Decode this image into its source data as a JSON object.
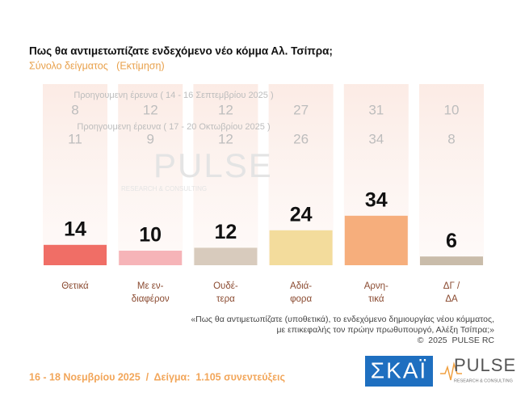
{
  "chart_data": {
    "type": "bar",
    "title": "Πως θα αντιμετωπίζατε ενδεχόμενο νέο κόμμα Αλ. Τσίπρα;",
    "subtitle": "Σύνολο δείγματος   (Εκτίμηση)",
    "categories": [
      [
        "Θετικά"
      ],
      [
        "Με εν-",
        "διαφέρον"
      ],
      [
        "Ουδέ-",
        "τερα"
      ],
      [
        "Αδιά-",
        "φορα"
      ],
      [
        "Αρνη-",
        "τικά"
      ],
      [
        "ΔΓ /",
        "ΔΑ"
      ]
    ],
    "values": [
      14,
      10,
      12,
      24,
      34,
      6
    ],
    "colors": [
      "#f06e66",
      "#f6b4b8",
      "#d8cbbd",
      "#f3dc9c",
      "#f6ae7c",
      "#c9bcaa"
    ],
    "previous": [
      {
        "name": "Προηγουμενη έρευνα ( 14 - 16 Σεπτεμβρίου 2025 )",
        "values": [
          8,
          12,
          12,
          27,
          31,
          10
        ]
      },
      {
        "name": "Προηγουμενη έρευνα ( 17 - 20 Οκτωβρίου 2025 )",
        "values": [
          11,
          9,
          12,
          26,
          34,
          8
        ]
      }
    ],
    "note": [
      "«Πως θα αντιμετωπίζατε (υποθετικά), το ενδεχόμενο δημιουργίας νέου κόμματος,",
      "με επικεφαλής τον πρώην πρωθυπουργό, Αλέξη Τσίπρα;»",
      "©  2025  PULSE RC"
    ],
    "footer": "16 - 18 Νοεμβρίου 2025  /  Δείγμα:  1.105 συνεντεύξεις"
  },
  "logos": {
    "skai": "ΣΚΑΪ",
    "pulse": "PULSE",
    "pulse_sub": "RESEARCH & CONSULTING"
  }
}
